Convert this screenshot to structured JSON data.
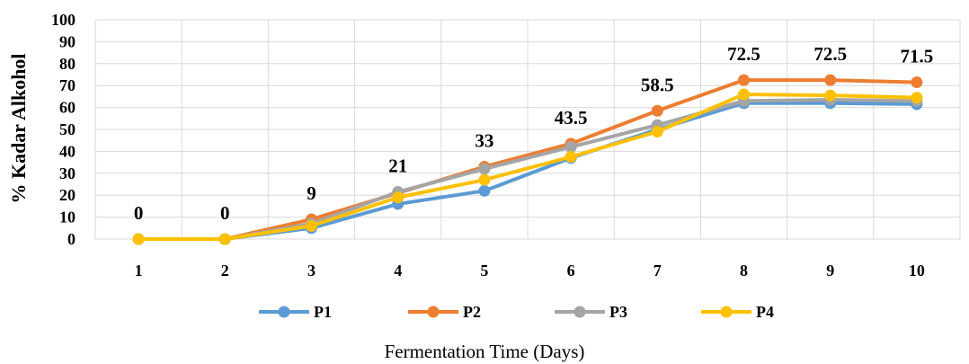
{
  "chart_data": {
    "type": "line",
    "title": "",
    "xlabel": "Fermentation Time (Days)",
    "ylabel": "% Kadar Alkohol",
    "categories": [
      "1",
      "2",
      "3",
      "4",
      "5",
      "6",
      "7",
      "8",
      "9",
      "10"
    ],
    "ylim": [
      0,
      100
    ],
    "yticks": [
      "0",
      "10",
      "20",
      "30",
      "40",
      "50",
      "60",
      "70",
      "80",
      "90",
      "100"
    ],
    "grid": true,
    "legend_position": "bottom",
    "series": [
      {
        "name": "P1",
        "color": "#5b9bd5",
        "values": [
          0,
          0,
          5,
          16,
          22,
          37,
          50,
          62,
          62,
          61.5
        ]
      },
      {
        "name": "P2",
        "color": "#ed7d31",
        "values": [
          0,
          0,
          9,
          21,
          33,
          43.5,
          58.5,
          72.5,
          72.5,
          71.5
        ]
      },
      {
        "name": "P3",
        "color": "#a5a5a5",
        "values": [
          0,
          0,
          7,
          21.5,
          32,
          42,
          52,
          63,
          63.5,
          63
        ]
      },
      {
        "name": "P4",
        "color": "#ffc000",
        "values": [
          0,
          0,
          6,
          19,
          27,
          37.5,
          49,
          66,
          65.5,
          64.5
        ]
      }
    ],
    "data_labels": [
      "0",
      "0",
      "9",
      "21",
      "33",
      "43.5",
      "58.5",
      "72.5",
      "72.5",
      "71.5"
    ]
  }
}
